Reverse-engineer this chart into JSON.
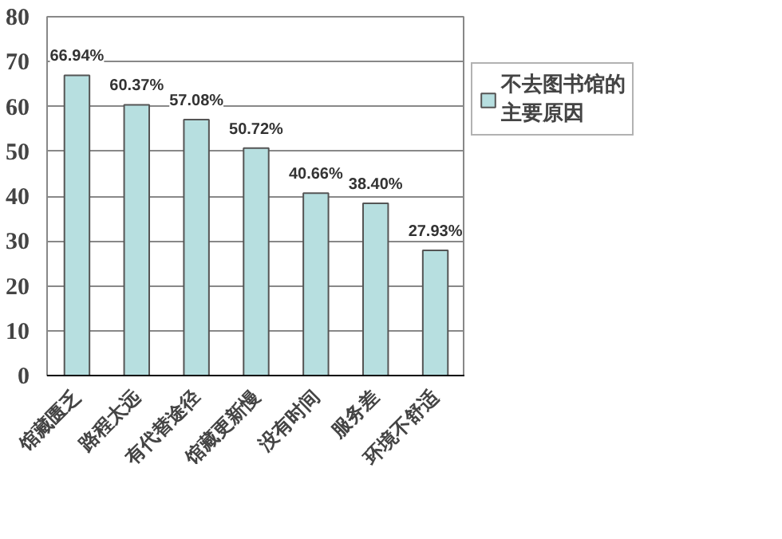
{
  "chart_data": {
    "type": "bar",
    "categories": [
      "馆藏匮乏",
      "路程太远",
      "有代替途径",
      "馆藏更新慢",
      "没有时间",
      "服务差",
      "环境不舒适"
    ],
    "series": [
      {
        "name": "不去图书馆的主要原因",
        "color": "#b7dfe0",
        "values": [
          66.94,
          60.37,
          57.08,
          50.72,
          40.66,
          38.4,
          27.93
        ],
        "value_labels": [
          "66.94%",
          "60.37%",
          "57.08%",
          "50.72%",
          "40.66%",
          "38.40%",
          "27.93%"
        ]
      }
    ],
    "ylim": [
      0,
      80
    ],
    "yticks": [
      0,
      10,
      20,
      30,
      40,
      50,
      60,
      70,
      80
    ],
    "grid": "y",
    "legend": "right"
  }
}
